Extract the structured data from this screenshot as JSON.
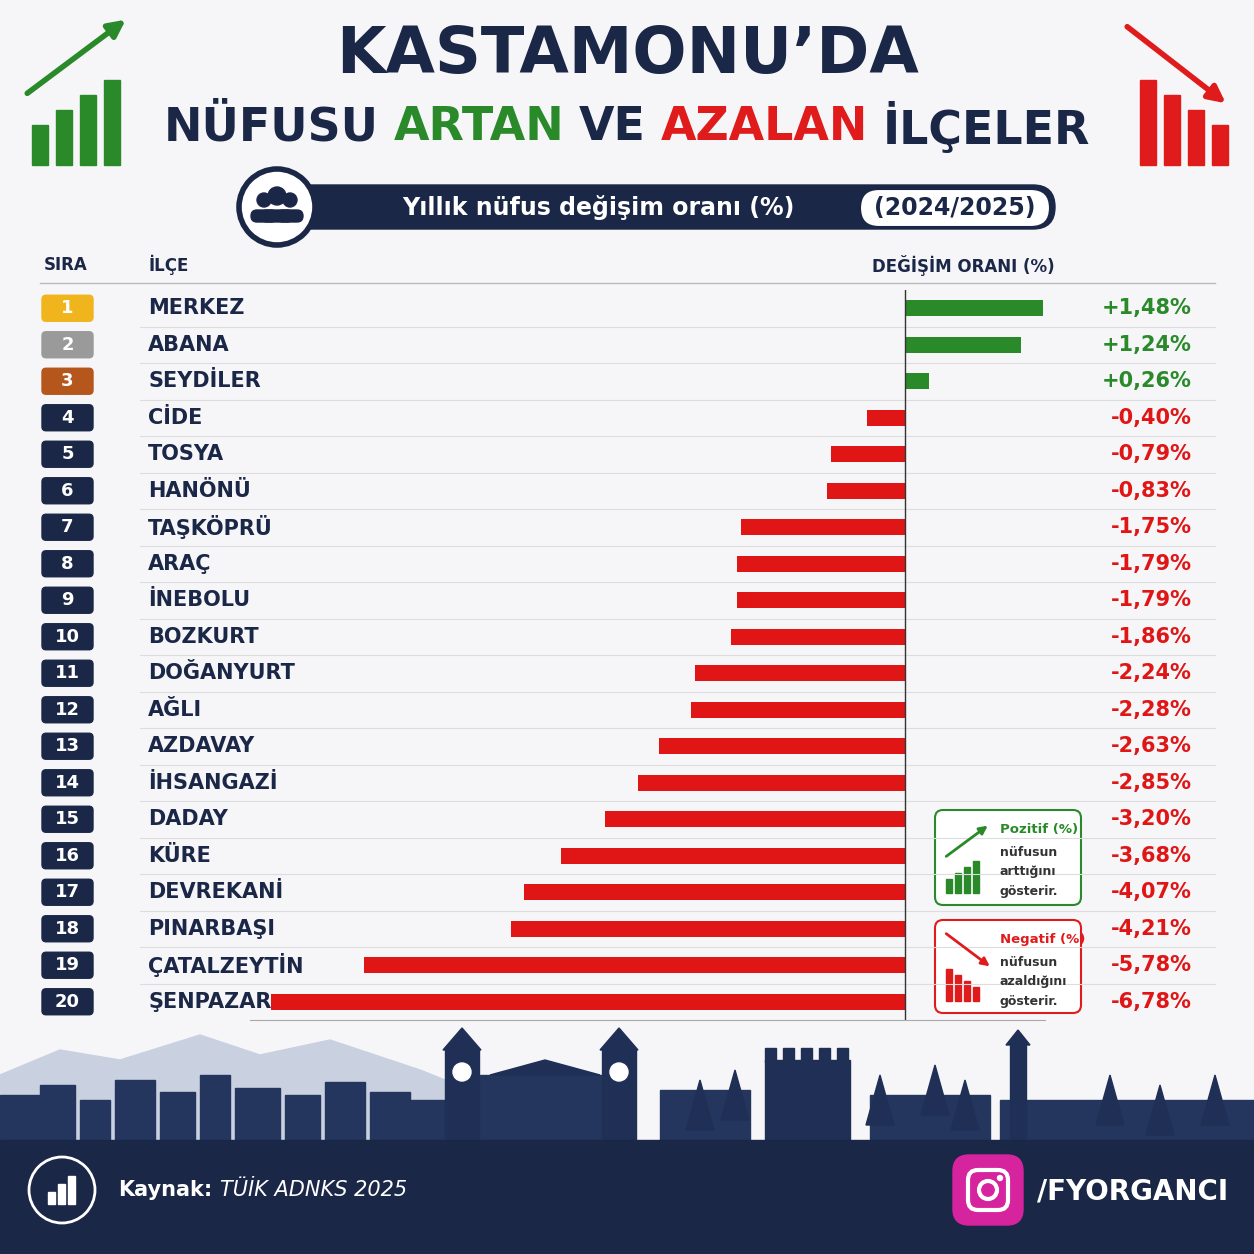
{
  "chart_data": {
    "type": "bar",
    "orientation": "horizontal",
    "title": "KASTAMONU’DA",
    "title_line2": [
      "NÜFUSU",
      "ARTAN",
      "VE",
      "AZALAN",
      "İLÇELER"
    ],
    "subtitle": "Yıllık nüfus değişim oranı (%)",
    "period": "(2024/2025)",
    "column_headers": [
      "SIRA",
      "İLÇE",
      "DEĞİŞİM ORANI (%)"
    ],
    "ranks": [
      1,
      2,
      3,
      4,
      5,
      6,
      7,
      8,
      9,
      10,
      11,
      12,
      13,
      14,
      15,
      16,
      17,
      18,
      19,
      20
    ],
    "categories": [
      "MERKEZ",
      "ABANA",
      "SEYDİLER",
      "CİDE",
      "TOSYA",
      "HANÖNÜ",
      "TAŞKÖPRÜ",
      "ARAÇ",
      "İNEBOLU",
      "BOZKURT",
      "DOĞANYURT",
      "AĞLI",
      "AZDAVAY",
      "İHSANGAZİ",
      "DADAY",
      "KÜRE",
      "DEVREKANİ",
      "PINARBAŞI",
      "ÇATALZEYTİN",
      "ŞENPAZAR"
    ],
    "values": [
      1.48,
      1.24,
      0.26,
      -0.4,
      -0.79,
      -0.83,
      -1.75,
      -1.79,
      -1.79,
      -1.86,
      -2.24,
      -2.28,
      -2.63,
      -2.85,
      -3.2,
      -3.68,
      -4.07,
      -4.21,
      -5.78,
      -6.78
    ],
    "value_labels": [
      "+1,48%",
      "+1,24%",
      "+0,26%",
      "-0,40%",
      "-0,79%",
      "-0,83%",
      "-1,75%",
      "-1,79%",
      "-1,79%",
      "-1,86%",
      "-2,24%",
      "-2,28%",
      "-2,63%",
      "-2,85%",
      "-3,20%",
      "-3,68%",
      "-4,07%",
      "-4,21%",
      "-5,78%",
      "-6,78%"
    ],
    "colors": [
      "#2a8a2a",
      "#2a8a2a",
      "#2a8a2a",
      "#e01616",
      "#e01616",
      "#e01616",
      "#e01616",
      "#e01616",
      "#e01616",
      "#e01616",
      "#e01616",
      "#e01616",
      "#e01616",
      "#e01616",
      "#e01616",
      "#e01616",
      "#e01616",
      "#e01616",
      "#e01616",
      "#e01616"
    ],
    "xlim": [
      -7,
      1.5
    ],
    "tick_labels": false,
    "grid": false,
    "data_labels": true,
    "annotations": {
      "positive": {
        "title": "Pozitif (%)",
        "lines": [
          "nüfusun",
          "arttığını",
          "gösterir."
        ]
      },
      "negative": {
        "title": "Negatif (%)",
        "lines": [
          "nüfusun",
          "azaldığını",
          "gösterir."
        ]
      }
    },
    "source_label": "Kaynak:",
    "source": "TÜİK ADNKS 2025",
    "handle": "/FYORGANCI"
  }
}
